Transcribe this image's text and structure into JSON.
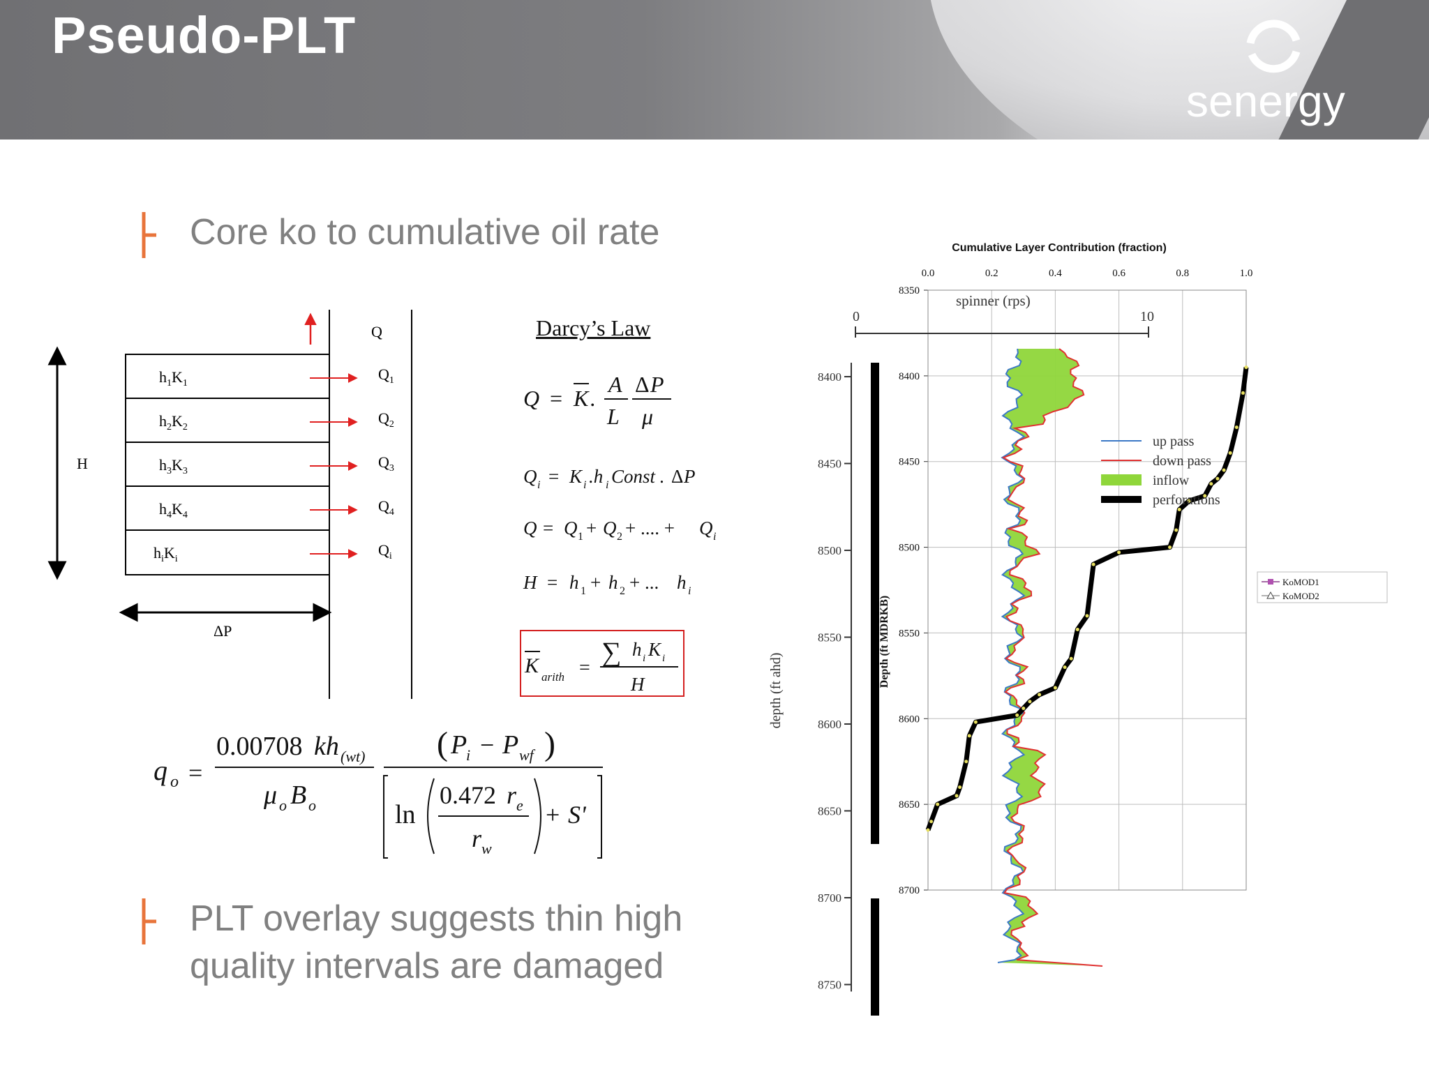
{
  "slide": {
    "title": "Pseudo-PLT",
    "logo_text": "senergy",
    "bullets": [
      "Core ko to cumulative oil rate",
      "PLT overlay suggests thin high",
      "quality intervals are damaged"
    ],
    "accent_color": "#e8743b"
  },
  "diagram": {
    "layers": [
      "h1K1",
      "h2K2",
      "h3K3",
      "h4K4",
      "hiKi"
    ],
    "layer_sub": [
      [
        "h",
        "1",
        "K",
        "1"
      ],
      [
        "h",
        "2",
        "K",
        "2"
      ],
      [
        "h",
        "3",
        "K",
        "3"
      ],
      [
        "h",
        "4",
        "K",
        "4"
      ],
      [
        "h",
        "i",
        "K",
        "i"
      ]
    ],
    "flows": [
      [
        "Q",
        "1"
      ],
      [
        "Q",
        "2"
      ],
      [
        "Q",
        "3"
      ],
      [
        "Q",
        "4"
      ],
      [
        "Q",
        "i"
      ]
    ],
    "q_label": "Q",
    "h_label": "H",
    "dp_label": "ΔP"
  },
  "equations": {
    "darcy_title": "Darcy’s Law"
  },
  "chart_data": {
    "type": "line",
    "title": "Cumulative Layer Contribution (fraction)",
    "x_ticks": [
      "0.0",
      "0.2",
      "0.4",
      "0.6",
      "0.8",
      "1.0"
    ],
    "y_ticks": [
      "8350",
      "8400",
      "8450",
      "8500",
      "8550",
      "8600",
      "8650",
      "8700"
    ],
    "y_axis_label": "Depth (ft MDRKB)",
    "xlim": [
      0,
      1
    ],
    "ylim": [
      8350,
      8700
    ],
    "legend": [
      "KoMOD1",
      "KoMOD2"
    ],
    "series": [
      {
        "name": "KoMOD1",
        "x": [
          1.0,
          0.99,
          0.97,
          0.95,
          0.93,
          0.91,
          0.89,
          0.87,
          0.82,
          0.79,
          0.78,
          0.76,
          0.6,
          0.52,
          0.5,
          0.47,
          0.45,
          0.43,
          0.4,
          0.35,
          0.32,
          0.3,
          0.28,
          0.15,
          0.13,
          0.12,
          0.1,
          0.09,
          0.03,
          0.01,
          0.0
        ],
        "y": [
          8395,
          8410,
          8430,
          8445,
          8455,
          8460,
          8463,
          8470,
          8473,
          8478,
          8490,
          8500,
          8503,
          8510,
          8540,
          8548,
          8565,
          8570,
          8582,
          8586,
          8590,
          8594,
          8598,
          8602,
          8610,
          8625,
          8640,
          8645,
          8650,
          8660,
          8665
        ]
      },
      {
        "name": "KoMOD2",
        "x": [
          1.0,
          0.99,
          0.97,
          0.95,
          0.93,
          0.91,
          0.89,
          0.87,
          0.82,
          0.79,
          0.78,
          0.76,
          0.6,
          0.52,
          0.5,
          0.47,
          0.45,
          0.43,
          0.4,
          0.35,
          0.32,
          0.3,
          0.28,
          0.15,
          0.13,
          0.12,
          0.1,
          0.09,
          0.03,
          0.01,
          0.0
        ],
        "y": [
          8395,
          8410,
          8430,
          8445,
          8455,
          8460,
          8463,
          8470,
          8473,
          8478,
          8490,
          8500,
          8503,
          8510,
          8540,
          8548,
          8565,
          8570,
          8582,
          8586,
          8590,
          8594,
          8598,
          8602,
          8610,
          8625,
          8640,
          8645,
          8650,
          8660,
          8665
        ]
      }
    ],
    "spinner": {
      "title": "spinner (rps)",
      "min_label": "0",
      "max_label": "10",
      "depth_label": "depth (ft ahd)",
      "depth_ticks": [
        "8400",
        "8450",
        "8500",
        "8550",
        "8600",
        "8650",
        "8700",
        "8750"
      ],
      "legend": [
        "up pass",
        "down pass",
        "inflow",
        "perforations"
      ],
      "colors": {
        "up": "#3a78c6",
        "down": "#e03030",
        "inflow": "#8fd63a",
        "perf": "#000000"
      }
    }
  }
}
